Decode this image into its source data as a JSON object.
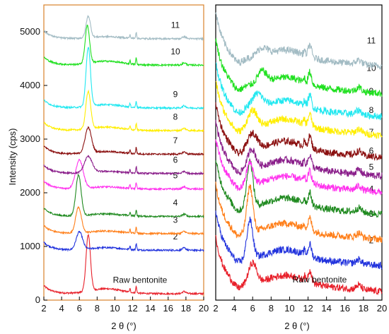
{
  "chart_data": [
    {
      "type": "line",
      "panel": "left",
      "xlabel": "2 θ (°)",
      "ylabel": "Intensity (cps)",
      "xlim": [
        2,
        20
      ],
      "ylim": [
        0,
        5500
      ],
      "xticks": [
        2,
        4,
        6,
        8,
        10,
        12,
        14,
        16,
        18,
        20
      ],
      "yticks": [
        0,
        1000,
        2000,
        3000,
        4000,
        5000
      ],
      "frame_color": "#d9822b",
      "series": [
        {
          "name": "Raw bentonite",
          "color": "#e8202a",
          "baseline": 120,
          "peak_x": 7.0,
          "peak_h": 1050,
          "peak_w": 0.35,
          "hump": 230
        },
        {
          "name": "2",
          "color": "#2233dd",
          "baseline": 930,
          "peak_x": 6.0,
          "peak_h": 330,
          "peak_w": 0.5,
          "hump": 120
        },
        {
          "name": "3",
          "color": "#ff7f1a",
          "baseline": 1240,
          "peak_x": 5.9,
          "peak_h": 480,
          "peak_w": 0.45,
          "hump": 120
        },
        {
          "name": "4",
          "color": "#1f8a1f",
          "baseline": 1560,
          "peak_x": 5.9,
          "peak_h": 760,
          "peak_w": 0.42,
          "hump": 120
        },
        {
          "name": "5",
          "color": "#ff33ee",
          "baseline": 2070,
          "peak_x": 6.0,
          "peak_h": 530,
          "peak_w": 0.6,
          "hump": 100
        },
        {
          "name": "6",
          "color": "#8a1e8a",
          "baseline": 2360,
          "peak_x": 7.0,
          "peak_h": 300,
          "peak_w": 0.6,
          "hump": 100
        },
        {
          "name": "7",
          "color": "#8b1010",
          "baseline": 2720,
          "peak_x": 7.0,
          "peak_h": 470,
          "peak_w": 0.5,
          "hump": 120
        },
        {
          "name": "8",
          "color": "#ffee00",
          "baseline": 3160,
          "peak_x": 7.0,
          "peak_h": 700,
          "peak_w": 0.38,
          "hump": 160
        },
        {
          "name": "9",
          "color": "#22e8f0",
          "baseline": 3580,
          "peak_x": 7.0,
          "peak_h": 1100,
          "peak_w": 0.35,
          "hump": 160
        },
        {
          "name": "10",
          "color": "#1fe01f",
          "baseline": 4380,
          "peak_x": 6.9,
          "peak_h": 700,
          "peak_w": 0.35,
          "hump": 180
        },
        {
          "name": "11",
          "color": "#a3bcc4",
          "baseline": 4870,
          "peak_x": 7.0,
          "peak_h": 400,
          "peak_w": 0.35,
          "hump": 100
        }
      ]
    },
    {
      "type": "line",
      "panel": "right",
      "xlabel": "2 θ (°)",
      "ylabel": "",
      "xlim": [
        2,
        20
      ],
      "ylim": [
        0,
        5500
      ],
      "xticks": [
        2,
        4,
        6,
        8,
        10,
        12,
        14,
        16,
        18,
        20
      ],
      "frame_color": "#000000",
      "series": [
        {
          "name": "Raw bentonite",
          "color": "#e8202a",
          "baseline": 280,
          "peak_x": 6.0,
          "peak_h": 380,
          "peak_w": 0.6
        },
        {
          "name": "2",
          "color": "#2233dd",
          "baseline": 760,
          "peak_x": 5.7,
          "peak_h": 700,
          "peak_w": 0.45
        },
        {
          "name": "3",
          "color": "#ff7f1a",
          "baseline": 1250,
          "peak_x": 5.7,
          "peak_h": 840,
          "peak_w": 0.45
        },
        {
          "name": "4",
          "color": "#1f8a1f",
          "baseline": 1720,
          "peak_x": 5.7,
          "peak_h": 850,
          "peak_w": 0.45
        },
        {
          "name": "5",
          "color": "#ff33ee",
          "baseline": 2130,
          "peak_x": 5.7,
          "peak_h": 400,
          "peak_w": 0.5
        },
        {
          "name": "6",
          "color": "#8a1e8a",
          "baseline": 2430,
          "peak_x": 5.9,
          "peak_h": 350,
          "peak_w": 0.6
        },
        {
          "name": "7",
          "color": "#8b1010",
          "baseline": 2780,
          "peak_x": 6.0,
          "peak_h": 300,
          "peak_w": 0.7
        },
        {
          "name": "8",
          "color": "#ffee00",
          "baseline": 3190,
          "peak_x": 6.0,
          "peak_h": 300,
          "peak_w": 0.7
        },
        {
          "name": "9",
          "color": "#22e8f0",
          "baseline": 3540,
          "peak_x": 6.5,
          "peak_h": 260,
          "peak_w": 0.8
        },
        {
          "name": "10",
          "color": "#1fe01f",
          "baseline": 3970,
          "peak_x": 7.0,
          "peak_h": 230,
          "peak_w": 0.7
        },
        {
          "name": "11",
          "color": "#a3bcc4",
          "baseline": 4480,
          "peak_x": 7.0,
          "peak_h": 150,
          "peak_w": 0.8
        }
      ]
    }
  ]
}
